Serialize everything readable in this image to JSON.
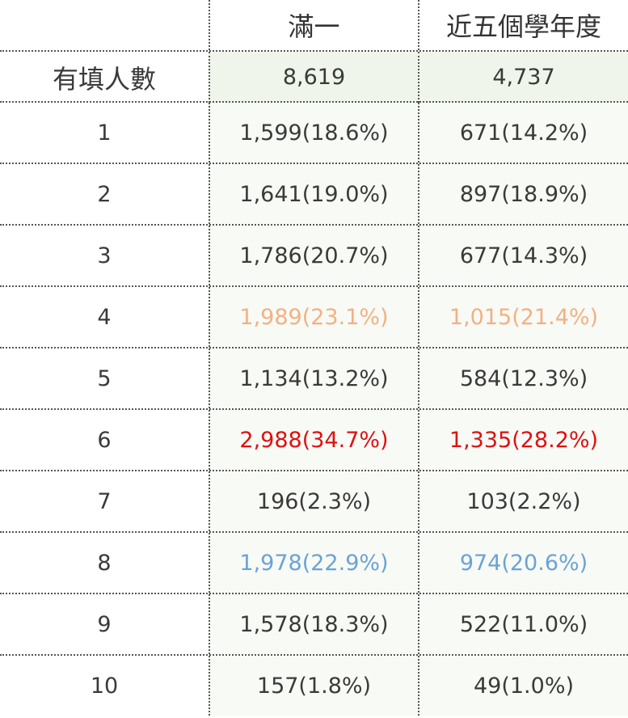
{
  "table": {
    "headers": [
      "",
      "滿一",
      "近五個學年度"
    ],
    "count_row": {
      "label": "有填人數",
      "col1": "8,619",
      "col2": "4,737"
    },
    "rows": [
      {
        "label": "1",
        "col1": "1,599(18.6%)",
        "col2": "671(14.2%)",
        "highlight": ""
      },
      {
        "label": "2",
        "col1": "1,641(19.0%)",
        "col2": "897(18.9%)",
        "highlight": ""
      },
      {
        "label": "3",
        "col1": "1,786(20.7%)",
        "col2": "677(14.3%)",
        "highlight": ""
      },
      {
        "label": "4",
        "col1": "1,989(23.1%)",
        "col2": "1,015(21.4%)",
        "highlight": "orange"
      },
      {
        "label": "5",
        "col1": "1,134(13.2%)",
        "col2": "584(12.3%)",
        "highlight": ""
      },
      {
        "label": "6",
        "col1": "2,988(34.7%)",
        "col2": "1,335(28.2%)",
        "highlight": "red"
      },
      {
        "label": "7",
        "col1": "196(2.3%)",
        "col2": "103(2.2%)",
        "highlight": ""
      },
      {
        "label": "8",
        "col1": "1,978(22.9%)",
        "col2": "974(20.6%)",
        "highlight": "blue"
      },
      {
        "label": "9",
        "col1": "1,578(18.3%)",
        "col2": "522(11.0%)",
        "highlight": ""
      },
      {
        "label": "10",
        "col1": "157(1.8%)",
        "col2": "49(1.0%)",
        "highlight": ""
      }
    ]
  },
  "colors": {
    "orange": "#f2b182",
    "red": "#e01010",
    "blue": "#6aa3d6",
    "count_bg": "#eff5ea",
    "body_bg": "#f8faf5"
  }
}
